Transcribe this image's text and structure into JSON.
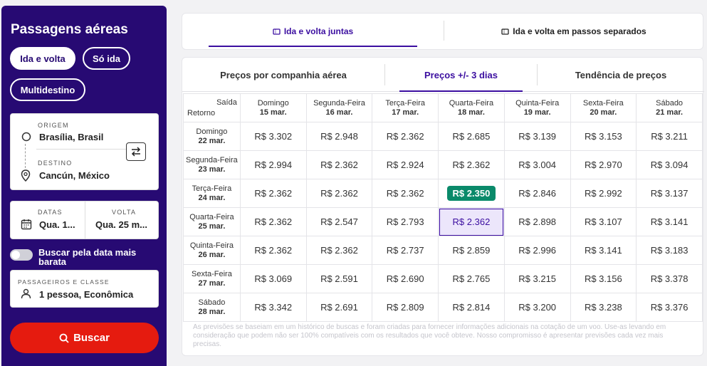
{
  "sidebar": {
    "title": "Passagens aéreas",
    "trip_types": [
      "Ida e volta",
      "Só ida",
      "Multidestino"
    ],
    "origin": {
      "label": "ORIGEM",
      "value": "Brasília, Brasil"
    },
    "destination": {
      "label": "DESTINO",
      "value": "Cancún, México"
    },
    "dates": {
      "depart_label": "DATAS",
      "depart_value": "Qua. 1...",
      "return_label": "VOLTA",
      "return_value": "Qua. 25 m..."
    },
    "cheapest_toggle": "Buscar pela data mais barata",
    "passengers": {
      "label": "PASSAGEIROS E CLASSE",
      "value": "1 pessoa, Econômica"
    },
    "search_button": "Buscar"
  },
  "top_tabs": [
    "Ida e volta juntas",
    "Ida e volta em passos separados"
  ],
  "sub_tabs": [
    "Preços por companhia aérea",
    "Preços +/- 3 dias",
    "Tendência de preços"
  ],
  "grid": {
    "corner_top": "Saída",
    "corner_bottom": "Retorno",
    "columns": [
      {
        "day": "Domingo",
        "date": "15 mar."
      },
      {
        "day": "Segunda-Feira",
        "date": "16 mar."
      },
      {
        "day": "Terça-Feira",
        "date": "17 mar."
      },
      {
        "day": "Quarta-Feira",
        "date": "18 mar."
      },
      {
        "day": "Quinta-Feira",
        "date": "19 mar."
      },
      {
        "day": "Sexta-Feira",
        "date": "20 mar."
      },
      {
        "day": "Sábado",
        "date": "21 mar."
      }
    ],
    "rows": [
      {
        "day": "Domingo",
        "date": "22 mar.",
        "prices": [
          "R$ 3.302",
          "R$ 2.948",
          "R$ 2.362",
          "R$ 2.685",
          "R$ 3.139",
          "R$ 3.153",
          "R$ 3.211"
        ]
      },
      {
        "day": "Segunda-Feira",
        "date": "23 mar.",
        "prices": [
          "R$ 2.994",
          "R$ 2.362",
          "R$ 2.924",
          "R$ 2.362",
          "R$ 3.004",
          "R$ 2.970",
          "R$ 3.094"
        ]
      },
      {
        "day": "Terça-Feira",
        "date": "24 mar.",
        "prices": [
          "R$ 2.362",
          "R$ 2.362",
          "R$ 2.362",
          "R$ 2.350",
          "R$ 2.846",
          "R$ 2.992",
          "R$ 3.137"
        ]
      },
      {
        "day": "Quarta-Feira",
        "date": "25 mar.",
        "prices": [
          "R$ 2.362",
          "R$ 2.547",
          "R$ 2.793",
          "R$ 2.362",
          "R$ 2.898",
          "R$ 3.107",
          "R$ 3.141"
        ]
      },
      {
        "day": "Quinta-Feira",
        "date": "26 mar.",
        "prices": [
          "R$ 2.362",
          "R$ 2.362",
          "R$ 2.737",
          "R$ 2.859",
          "R$ 2.996",
          "R$ 3.141",
          "R$ 3.183"
        ]
      },
      {
        "day": "Sexta-Feira",
        "date": "27 mar.",
        "prices": [
          "R$ 3.069",
          "R$ 2.591",
          "R$ 2.690",
          "R$ 2.765",
          "R$ 3.215",
          "R$ 3.156",
          "R$ 3.378"
        ]
      },
      {
        "day": "Sábado",
        "date": "28 mar.",
        "prices": [
          "R$ 3.342",
          "R$ 2.691",
          "R$ 2.809",
          "R$ 2.814",
          "R$ 3.200",
          "R$ 3.238",
          "R$ 3.376"
        ]
      }
    ],
    "best_price": {
      "row": 2,
      "col": 3
    },
    "selected": {
      "row": 3,
      "col": 3
    },
    "best_color": "#0a8a6a",
    "accent_color": "#3b0ea0"
  },
  "note": "As previsões se baseiam em um histórico de buscas e foram criadas para fornecer informações adicionais na cotação de um voo. Use-as levando em consideração que podem não ser 100% compatíveis com os resultados que você obteve. Nosso compromisso é apresentar previsões cada vez mais precisas."
}
